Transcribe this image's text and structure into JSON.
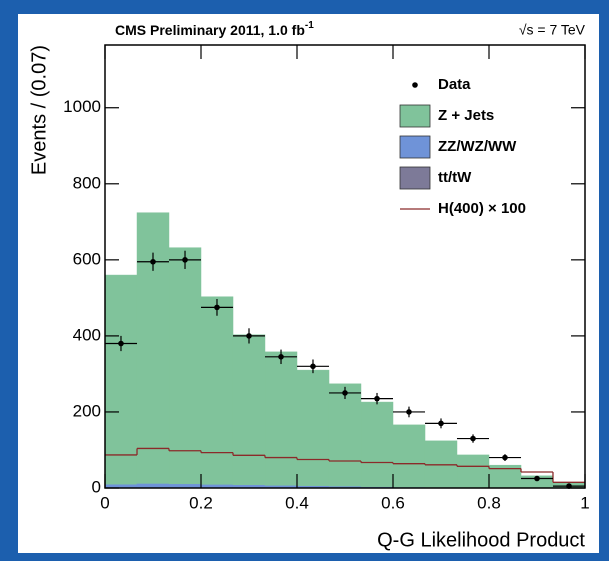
{
  "chart_data": {
    "type": "histogram",
    "title": "CMS Preliminary 2011, 1.0 fb",
    "title_superscript": "-1",
    "energy_label": "√s = 7 TeV",
    "xlabel": "Q-G Likelihood Product",
    "ylabel": "Events / (0.07)",
    "bins": [
      0,
      0.0667,
      0.1333,
      0.2,
      0.2667,
      0.3333,
      0.4,
      0.4667,
      0.5333,
      0.6,
      0.6667,
      0.7333,
      0.8,
      0.8667,
      0.9333,
      1
    ],
    "xlim": [
      0,
      1
    ],
    "ylim": [
      0,
      1165
    ],
    "xticks": [
      0,
      0.2,
      0.4,
      0.6,
      0.8,
      1
    ],
    "yticks": [
      0,
      200,
      400,
      600,
      800,
      1000
    ],
    "legend": "upper right",
    "data": {
      "name": "Data",
      "color": "#000000",
      "x": [
        0.0333,
        0.1,
        0.1667,
        0.2333,
        0.3,
        0.3667,
        0.4333,
        0.5,
        0.5667,
        0.6333,
        0.7,
        0.7667,
        0.8333,
        0.9,
        0.9667
      ],
      "values": [
        380,
        595,
        600,
        475,
        400,
        345,
        320,
        250,
        235,
        200,
        170,
        130,
        80,
        25,
        5
      ],
      "errors": [
        20,
        24,
        24,
        22,
        20,
        19,
        18,
        16,
        15,
        14,
        13,
        11,
        9,
        5,
        2
      ]
    },
    "series": [
      {
        "name": "Z + Jets",
        "color": "#80c39b",
        "values": [
          550,
          712,
          621,
          493.5,
          394.5,
          351,
          304,
          269,
          222.5,
          163.5,
          122.2,
          85.8,
          59.4,
          31.6,
          12.9
        ]
      },
      {
        "name": "ZZ/WZ/WW",
        "color": "#6f93d8",
        "values": [
          8,
          10,
          9,
          8,
          7,
          6,
          5,
          4,
          3,
          2,
          1.5,
          1,
          0.5,
          0.3,
          0.1
        ]
      },
      {
        "name": "tt/tW",
        "color": "#7d7a98",
        "values": [
          2,
          2,
          2,
          1.5,
          1.5,
          1,
          1,
          1,
          0.5,
          0.5,
          0.3,
          0.2,
          0.1,
          0.1,
          0
        ]
      }
    ],
    "signal": {
      "name": "H(400) × 100",
      "color": "#8b2a2a",
      "values": [
        87,
        104,
        98,
        93,
        86,
        80,
        75,
        71,
        67,
        64,
        61,
        57,
        51,
        42,
        15
      ]
    }
  }
}
